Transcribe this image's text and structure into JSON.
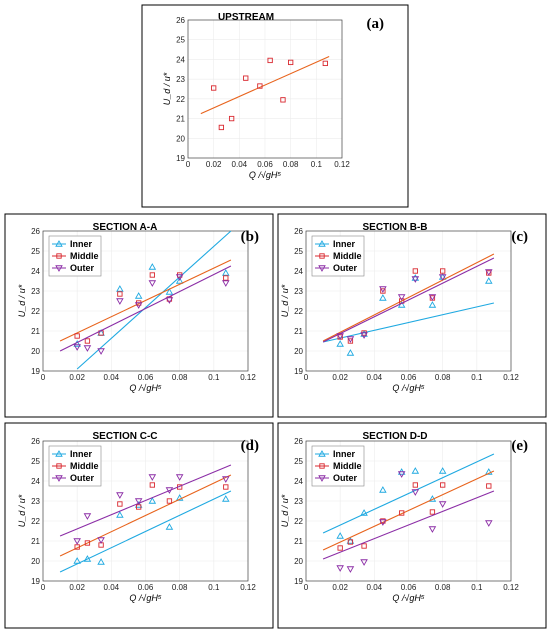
{
  "colors": {
    "inner": "#1fa9e1",
    "middle": "#d9282f",
    "outer": "#8b2da6",
    "fit": "#e8631c",
    "grid": "#ececec"
  },
  "chart_data": [
    {
      "panel": "(a)",
      "type": "scatter",
      "title": "UPSTREAM",
      "xlabel": "Q /√gH⁵",
      "ylabel": "U_d / u*",
      "xlim": [
        0,
        0.12
      ],
      "ylim": [
        19,
        26
      ],
      "xticks": [
        "0",
        "0.02",
        "0.04",
        "0.06",
        "0.08",
        "0.1",
        "0.12"
      ],
      "yticks": [
        "19",
        "20",
        "21",
        "22",
        "23",
        "24",
        "25",
        "26"
      ],
      "grid": true,
      "legend": "none",
      "series": [
        {
          "color_key": "middle",
          "marker": "square",
          "points": [
            [
              0.02,
              22.55
            ],
            [
              0.026,
              20.55
            ],
            [
              0.034,
              21.0
            ],
            [
              0.045,
              23.05
            ],
            [
              0.056,
              22.65
            ],
            [
              0.064,
              23.95
            ],
            [
              0.074,
              21.95
            ],
            [
              0.08,
              23.85
            ],
            [
              0.107,
              23.8
            ]
          ],
          "fit": [
            [
              0.01,
              21.25
            ],
            [
              0.11,
              24.15
            ]
          ],
          "fit_color_key": "fit"
        }
      ]
    },
    {
      "panel": "(b)",
      "type": "scatter",
      "title": "SECTION A-A",
      "xlabel": "Q /√gH⁵",
      "ylabel": "U_d / u*",
      "xlim": [
        0,
        0.12
      ],
      "ylim": [
        19,
        26
      ],
      "xticks": [
        "0",
        "0.02",
        "0.04",
        "0.06",
        "0.08",
        "0.1",
        "0.12"
      ],
      "yticks": [
        "19",
        "20",
        "21",
        "22",
        "23",
        "24",
        "25",
        "26"
      ],
      "grid": true,
      "legend": "top-left",
      "series": [
        {
          "name": "Inner",
          "color_key": "inner",
          "marker": "triangle-up",
          "points": [
            [
              0.02,
              20.35
            ],
            [
              0.034,
              20.9
            ],
            [
              0.045,
              23.1
            ],
            [
              0.056,
              22.75
            ],
            [
              0.064,
              24.2
            ],
            [
              0.074,
              22.95
            ],
            [
              0.08,
              23.5
            ],
            [
              0.107,
              23.9
            ]
          ],
          "fit": [
            [
              0.02,
              19.1
            ],
            [
              0.11,
              26.0
            ]
          ]
        },
        {
          "name": "Middle",
          "color_key": "middle",
          "marker": "square",
          "points": [
            [
              0.02,
              20.75
            ],
            [
              0.026,
              20.5
            ],
            [
              0.034,
              20.9
            ],
            [
              0.045,
              22.85
            ],
            [
              0.056,
              22.4
            ],
            [
              0.064,
              23.8
            ],
            [
              0.074,
              22.6
            ],
            [
              0.08,
              23.8
            ],
            [
              0.107,
              23.65
            ]
          ],
          "fit": [
            [
              0.01,
              20.5
            ],
            [
              0.11,
              24.55
            ]
          ],
          "fit_color_key": "fit"
        },
        {
          "name": "Outer",
          "color_key": "outer",
          "marker": "triangle-down",
          "points": [
            [
              0.02,
              20.2
            ],
            [
              0.026,
              20.15
            ],
            [
              0.034,
              20.0
            ],
            [
              0.045,
              22.5
            ],
            [
              0.056,
              22.3
            ],
            [
              0.064,
              23.4
            ],
            [
              0.074,
              22.55
            ],
            [
              0.08,
              23.7
            ],
            [
              0.107,
              23.4
            ]
          ],
          "fit": [
            [
              0.01,
              20.0
            ],
            [
              0.11,
              24.25
            ]
          ]
        }
      ]
    },
    {
      "panel": "(c)",
      "type": "scatter",
      "title": "SECTION B-B",
      "xlabel": "Q /√gH⁵",
      "ylabel": "U_d / u*",
      "xlim": [
        0,
        0.12
      ],
      "ylim": [
        19,
        26
      ],
      "xticks": [
        "0",
        "0.02",
        "0.04",
        "0.06",
        "0.08",
        "0.1",
        "0.12"
      ],
      "yticks": [
        "19",
        "20",
        "21",
        "22",
        "23",
        "24",
        "25",
        "26"
      ],
      "grid": true,
      "legend": "top-left",
      "series": [
        {
          "name": "Inner",
          "color_key": "inner",
          "marker": "triangle-up",
          "points": [
            [
              0.02,
              20.35
            ],
            [
              0.026,
              19.9
            ],
            [
              0.034,
              20.85
            ],
            [
              0.045,
              22.65
            ],
            [
              0.056,
              22.3
            ],
            [
              0.064,
              23.65
            ],
            [
              0.074,
              22.3
            ],
            [
              0.08,
              23.7
            ],
            [
              0.107,
              23.5
            ]
          ],
          "fit": [
            [
              0.01,
              20.45
            ],
            [
              0.11,
              22.4
            ]
          ]
        },
        {
          "name": "Middle",
          "color_key": "middle",
          "marker": "square",
          "points": [
            [
              0.02,
              20.7
            ],
            [
              0.026,
              20.5
            ],
            [
              0.034,
              20.9
            ],
            [
              0.045,
              23.0
            ],
            [
              0.056,
              22.5
            ],
            [
              0.064,
              24.0
            ],
            [
              0.074,
              22.65
            ],
            [
              0.08,
              24.0
            ],
            [
              0.107,
              23.9
            ]
          ],
          "fit": [
            [
              0.01,
              20.5
            ],
            [
              0.11,
              24.85
            ]
          ],
          "fit_color_key": "fit"
        },
        {
          "name": "Outer",
          "color_key": "outer",
          "marker": "triangle-down",
          "points": [
            [
              0.02,
              20.75
            ],
            [
              0.026,
              20.6
            ],
            [
              0.034,
              20.8
            ],
            [
              0.045,
              23.1
            ],
            [
              0.056,
              22.7
            ],
            [
              0.064,
              23.6
            ],
            [
              0.074,
              22.7
            ],
            [
              0.08,
              23.7
            ],
            [
              0.107,
              23.95
            ]
          ],
          "fit": [
            [
              0.01,
              20.45
            ],
            [
              0.11,
              24.65
            ]
          ]
        }
      ]
    },
    {
      "panel": "(d)",
      "type": "scatter",
      "title": "SECTION C-C",
      "xlabel": "Q /√gH⁵",
      "ylabel": "U_d / u*",
      "xlim": [
        0,
        0.12
      ],
      "ylim": [
        19,
        26
      ],
      "xticks": [
        "0",
        "0.02",
        "0.04",
        "0.06",
        "0.08",
        "0.1",
        "0.12"
      ],
      "yticks": [
        "19",
        "20",
        "21",
        "22",
        "23",
        "24",
        "25",
        "26"
      ],
      "grid": true,
      "legend": "top-left",
      "series": [
        {
          "name": "Inner",
          "color_key": "inner",
          "marker": "triangle-up",
          "points": [
            [
              0.02,
              20.0
            ],
            [
              0.026,
              20.1
            ],
            [
              0.034,
              19.95
            ],
            [
              0.045,
              22.3
            ],
            [
              0.056,
              22.8
            ],
            [
              0.064,
              23.0
            ],
            [
              0.074,
              21.7
            ],
            [
              0.08,
              23.15
            ],
            [
              0.107,
              23.1
            ]
          ],
          "fit": [
            [
              0.01,
              19.45
            ],
            [
              0.11,
              23.5
            ]
          ]
        },
        {
          "name": "Middle",
          "color_key": "middle",
          "marker": "square",
          "points": [
            [
              0.02,
              20.7
            ],
            [
              0.026,
              20.9
            ],
            [
              0.034,
              20.8
            ],
            [
              0.045,
              22.85
            ],
            [
              0.056,
              22.7
            ],
            [
              0.064,
              23.8
            ],
            [
              0.074,
              23.0
            ],
            [
              0.08,
              23.7
            ],
            [
              0.107,
              23.7
            ]
          ],
          "fit": [
            [
              0.01,
              20.25
            ],
            [
              0.11,
              24.3
            ]
          ],
          "fit_color_key": "fit"
        },
        {
          "name": "Outer",
          "color_key": "outer",
          "marker": "triangle-down",
          "points": [
            [
              0.02,
              21.0
            ],
            [
              0.026,
              22.25
            ],
            [
              0.034,
              21.05
            ],
            [
              0.045,
              23.3
            ],
            [
              0.056,
              23.0
            ],
            [
              0.064,
              24.2
            ],
            [
              0.074,
              23.55
            ],
            [
              0.08,
              24.2
            ],
            [
              0.107,
              24.1
            ]
          ],
          "fit": [
            [
              0.01,
              21.25
            ],
            [
              0.11,
              24.8
            ]
          ]
        }
      ]
    },
    {
      "panel": "(e)",
      "type": "scatter",
      "title": "SECTION D-D",
      "xlabel": "Q /√gH⁵",
      "ylabel": "U_d / u*",
      "xlim": [
        0,
        0.12
      ],
      "ylim": [
        19,
        26
      ],
      "xticks": [
        "0",
        "0.02",
        "0.04",
        "0.06",
        "0.08",
        "0.1",
        "0.12"
      ],
      "yticks": [
        "19",
        "20",
        "21",
        "22",
        "23",
        "24",
        "25",
        "26"
      ],
      "grid": true,
      "legend": "top-left",
      "series": [
        {
          "name": "Inner",
          "color_key": "inner",
          "marker": "triangle-up",
          "points": [
            [
              0.02,
              21.25
            ],
            [
              0.026,
              21.0
            ],
            [
              0.034,
              22.4
            ],
            [
              0.045,
              23.55
            ],
            [
              0.056,
              24.45
            ],
            [
              0.064,
              24.5
            ],
            [
              0.074,
              23.1
            ],
            [
              0.08,
              24.5
            ],
            [
              0.107,
              24.45
            ]
          ],
          "fit": [
            [
              0.01,
              21.4
            ],
            [
              0.11,
              25.35
            ]
          ]
        },
        {
          "name": "Middle",
          "color_key": "middle",
          "marker": "square",
          "points": [
            [
              0.02,
              20.65
            ],
            [
              0.026,
              20.95
            ],
            [
              0.034,
              20.75
            ],
            [
              0.045,
              22.0
            ],
            [
              0.056,
              22.4
            ],
            [
              0.064,
              23.8
            ],
            [
              0.074,
              22.45
            ],
            [
              0.08,
              23.8
            ],
            [
              0.107,
              23.75
            ]
          ],
          "fit": [
            [
              0.01,
              20.55
            ],
            [
              0.11,
              24.5
            ]
          ],
          "fit_color_key": "fit"
        },
        {
          "name": "Outer",
          "color_key": "outer",
          "marker": "triangle-down",
          "points": [
            [
              0.02,
              19.65
            ],
            [
              0.026,
              19.6
            ],
            [
              0.034,
              19.95
            ],
            [
              0.045,
              21.95
            ],
            [
              0.056,
              24.35
            ],
            [
              0.064,
              23.45
            ],
            [
              0.074,
              21.6
            ],
            [
              0.08,
              22.85
            ],
            [
              0.107,
              21.9
            ]
          ],
          "fit": [
            [
              0.01,
              20.1
            ],
            [
              0.11,
              23.5
            ]
          ]
        }
      ]
    }
  ]
}
